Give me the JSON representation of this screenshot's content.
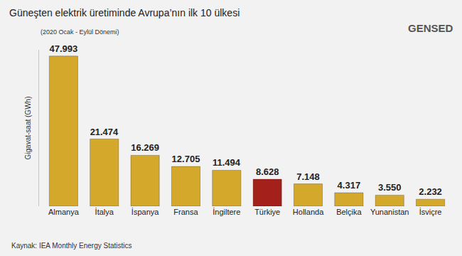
{
  "chart_data": {
    "type": "bar",
    "title": "Güneşten elektrik üretiminde Avrupa’nın ilk 10 ülkesi",
    "subtitle": "(2020 Ocak - Eylül Dönemi)",
    "y_label": "Gigavat-saat (GWh)",
    "annotations": [
      "Kaynak: IEA Monthly Energy Statistics",
      "GENSED"
    ],
    "categories": [
      "Almanya",
      "İtalya",
      "İspanya",
      "Fransa",
      "İngiltere",
      "Türkiye",
      "Hollanda",
      "Belçika",
      "Yunanistan",
      "İsviçre"
    ],
    "values": [
      47993,
      21474,
      16269,
      12705,
      11494,
      8628,
      7148,
      4317,
      3550,
      2232
    ],
    "value_labels": [
      "47.993",
      "21.474",
      "16.269",
      "12.705",
      "11.494",
      "8.628",
      "7.148",
      "4.317",
      "3.550",
      "2.232"
    ],
    "colors": [
      "#d4a82a",
      "#d4a82a",
      "#d4a82a",
      "#d4a82a",
      "#d4a82a",
      "#a3201b",
      "#d4a82a",
      "#d4a82a",
      "#d4a82a",
      "#d4a82a"
    ],
    "ylim": [
      0,
      50000
    ],
    "grid": false,
    "data_labels": true,
    "tick_labels": "x"
  }
}
